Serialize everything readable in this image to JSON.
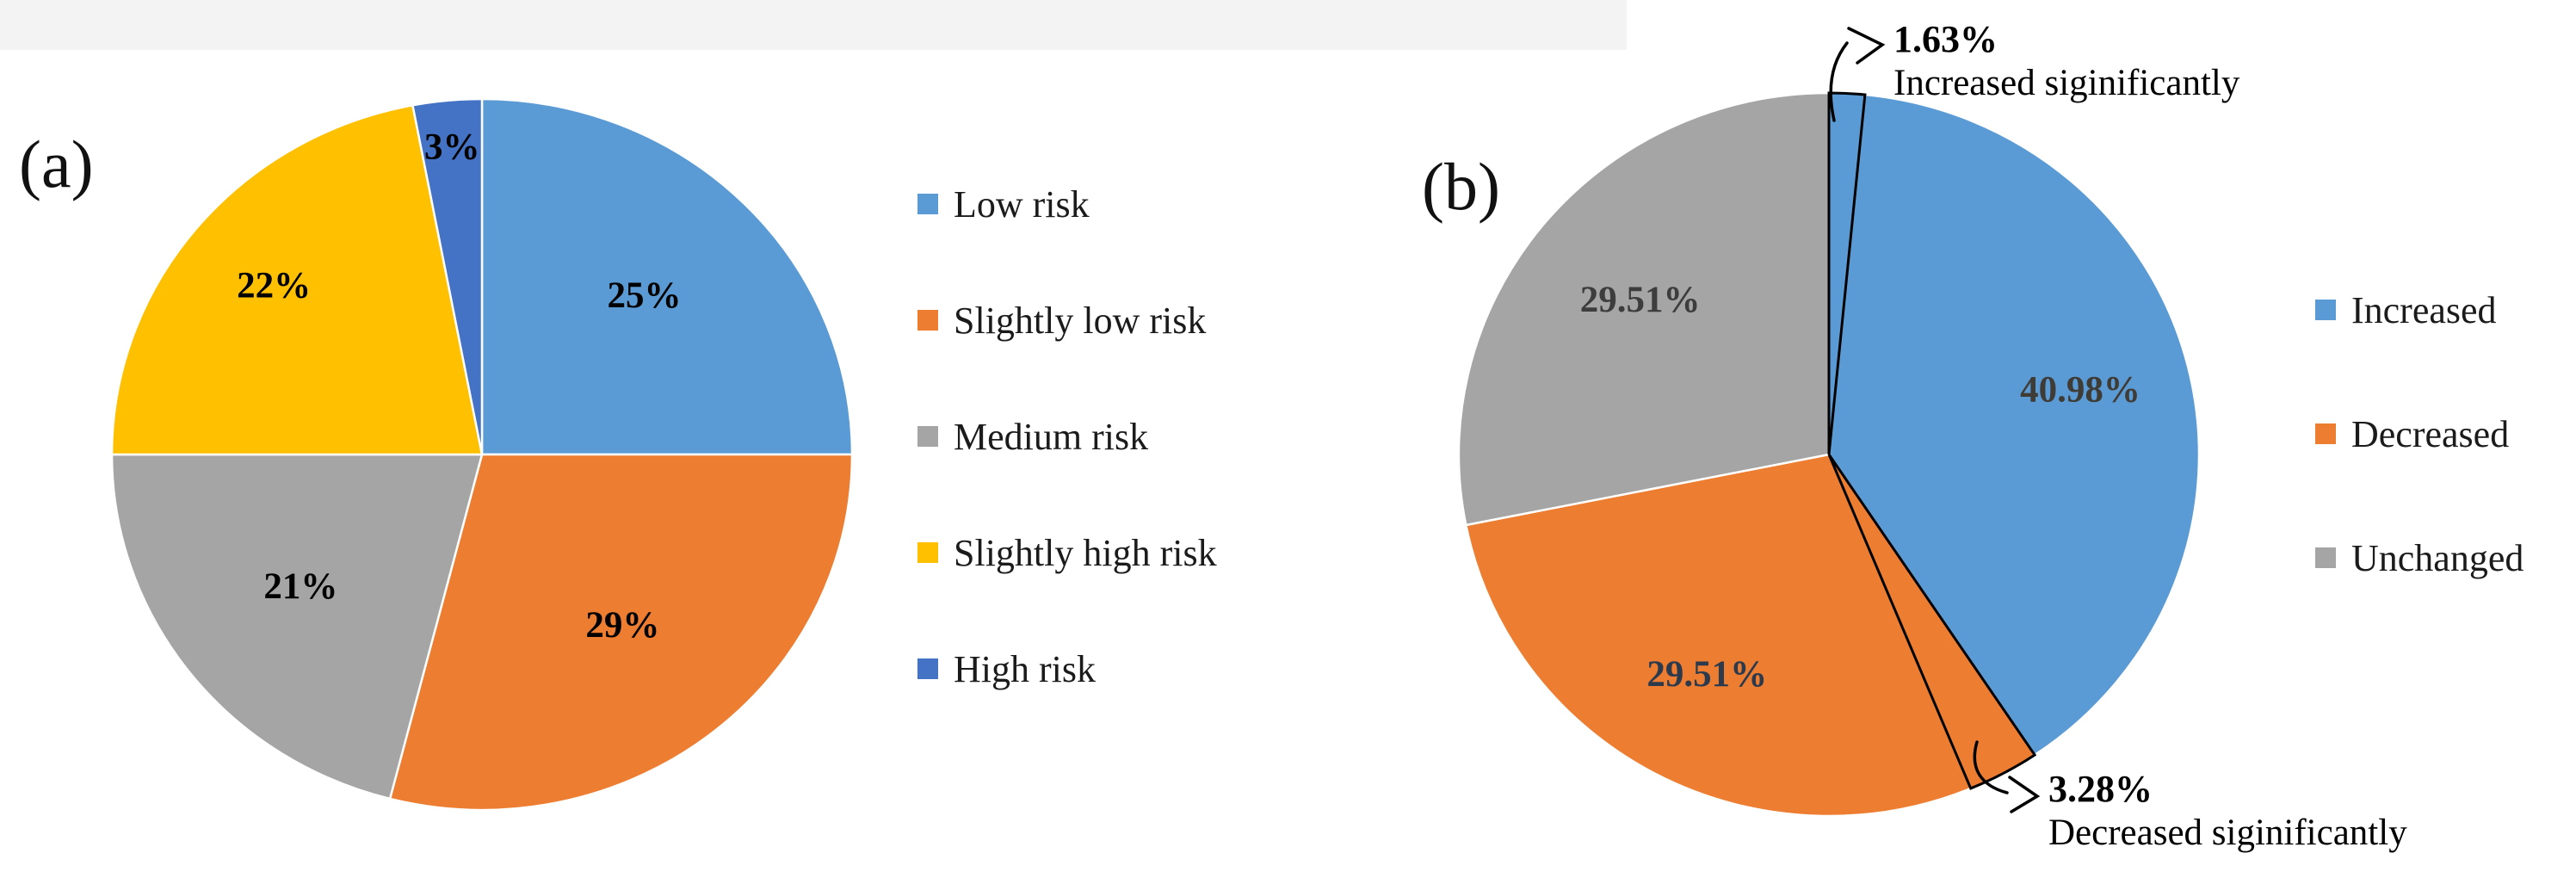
{
  "figure": {
    "panel_a_tag": "(a)",
    "panel_b_tag": "(b)"
  },
  "chart_data": [
    {
      "type": "pie",
      "panel": "(a)",
      "legend_position": "right",
      "start_angle_deg": 0,
      "direction": "clockwise",
      "slices": [
        {
          "label": "Low risk",
          "value": 25,
          "value_label": "25%",
          "color": "#5B9BD5",
          "outlined": false,
          "in_legend": true,
          "label_r": 0.62,
          "label_color": "#000000"
        },
        {
          "label": "Slightly low risk",
          "value": 29,
          "value_label": "29%",
          "color": "#ED7D31",
          "outlined": false,
          "in_legend": true,
          "label_r": 0.62,
          "label_color": "#000000"
        },
        {
          "label": "Medium risk",
          "value": 21,
          "value_label": "21%",
          "color": "#A5A5A5",
          "outlined": false,
          "in_legend": true,
          "label_r": 0.62,
          "label_color": "#000000"
        },
        {
          "label": "Slightly high risk",
          "value": 22,
          "value_label": "22%",
          "color": "#FFC000",
          "outlined": false,
          "in_legend": true,
          "label_r": 0.73,
          "label_color": "#000000"
        },
        {
          "label": "High risk",
          "value": 3,
          "value_label": "3%",
          "color": "#4472C4",
          "outlined": false,
          "in_legend": true,
          "label_r": 0.86,
          "label_color": "#000000"
        }
      ]
    },
    {
      "type": "pie",
      "panel": "(b)",
      "legend_position": "right",
      "start_angle_deg": 0,
      "direction": "clockwise",
      "slices": [
        {
          "label": "Increased siginificantly",
          "value": 1.63,
          "value_label": "1.63%",
          "color": "#5B9BD5",
          "outlined": true,
          "in_legend": false,
          "label_r": 0,
          "label_color": "#000000"
        },
        {
          "label": "Increased",
          "value": 40.98,
          "value_label": "40.98%",
          "color": "#5B9BD5",
          "outlined": false,
          "in_legend": true,
          "label_r": 0.7,
          "label_color": "#3F3B35"
        },
        {
          "label": "Decreased siginificantly",
          "value": 3.28,
          "value_label": "3.28%",
          "color": "#ED7D31",
          "outlined": true,
          "in_legend": false,
          "label_r": 0,
          "label_color": "#000000"
        },
        {
          "label": "Decreased",
          "value": 29.51,
          "value_label": "29.51%",
          "color": "#ED7D31",
          "outlined": false,
          "in_legend": true,
          "label_r": 0.7,
          "label_color": "#2C3A4E"
        },
        {
          "label": "Unchanged",
          "value": 29.51,
          "value_label": "29.51%",
          "color": "#A5A5A5",
          "outlined": false,
          "in_legend": true,
          "label_r": 0.66,
          "label_color": "#3D3D3D"
        }
      ]
    }
  ],
  "callouts": {
    "top": {
      "pct": "1.63%",
      "desc": "Increased siginificantly"
    },
    "bottom": {
      "pct": "3.28%",
      "desc": "Decreased siginificantly"
    }
  }
}
